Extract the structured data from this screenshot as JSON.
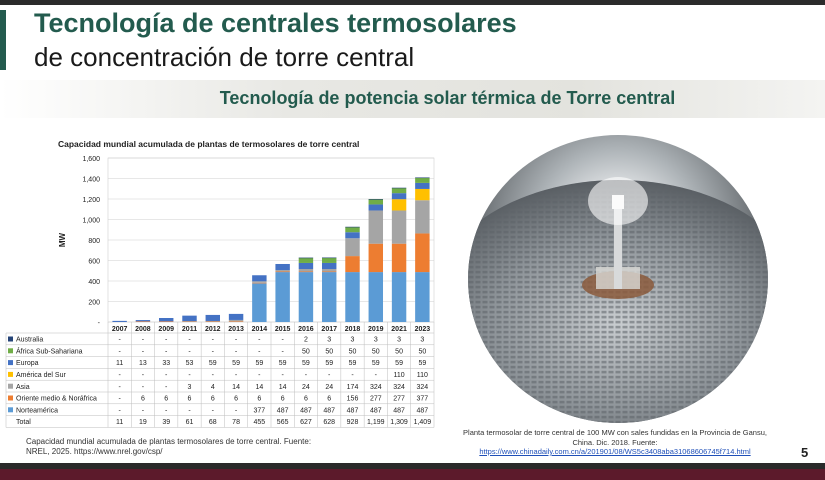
{
  "header": {
    "title_line1": "Tecnología de centrales termosolares",
    "title_line2": "de concentración de torre central",
    "subtitle": "Tecnología de potencia solar térmica de Torre central"
  },
  "chart_data": {
    "type": "bar",
    "stacked": true,
    "title": "Capacidad mundial acumulada de plantas de termosolares de torre central",
    "ylabel": "MW",
    "ylim": [
      0,
      1600
    ],
    "yticks": [
      "1,600",
      "1,400",
      "1,200",
      "1,000",
      "800",
      "600",
      "400",
      "200",
      "-"
    ],
    "grid": true,
    "categories": [
      "2007",
      "2008",
      "2009",
      "2011",
      "2012",
      "2013",
      "2014",
      "2015",
      "2016",
      "2017",
      "2018",
      "2019",
      "2021",
      "2023"
    ],
    "series": [
      {
        "name": "Norteamérica",
        "color": "#5b9bd5",
        "values": [
          0,
          0,
          0,
          0,
          0,
          0,
          377,
          487,
          487,
          487,
          487,
          487,
          487,
          487
        ],
        "labels": [
          "-",
          "-",
          "-",
          "-",
          "-",
          "-",
          "377",
          "487",
          "487",
          "487",
          "487",
          "487",
          "487",
          "487"
        ]
      },
      {
        "name": "Oriente medio & Noráfrica",
        "color": "#ed7d31",
        "values": [
          0,
          6,
          6,
          6,
          6,
          6,
          6,
          6,
          6,
          6,
          156,
          277,
          277,
          377
        ],
        "labels": [
          "-",
          "6",
          "6",
          "6",
          "6",
          "6",
          "6",
          "6",
          "6",
          "6",
          "156",
          "277",
          "277",
          "377"
        ]
      },
      {
        "name": "Asia",
        "color": "#a5a5a5",
        "values": [
          0,
          0,
          0,
          3,
          4,
          14,
          14,
          14,
          24,
          24,
          174,
          324,
          324,
          324
        ],
        "labels": [
          "-",
          "-",
          "-",
          "3",
          "4",
          "14",
          "14",
          "14",
          "24",
          "24",
          "174",
          "324",
          "324",
          "324"
        ]
      },
      {
        "name": "América del Sur",
        "color": "#ffc000",
        "values": [
          0,
          0,
          0,
          0,
          0,
          0,
          0,
          0,
          0,
          0,
          0,
          0,
          110,
          110
        ],
        "labels": [
          "-",
          "-",
          "-",
          "-",
          "-",
          "-",
          "-",
          "-",
          "-",
          "-",
          "-",
          "-",
          "110",
          "110"
        ]
      },
      {
        "name": "Europa",
        "color": "#4472c4",
        "values": [
          11,
          13,
          33,
          53,
          59,
          59,
          59,
          59,
          59,
          59,
          59,
          59,
          59,
          59
        ],
        "labels": [
          "11",
          "13",
          "33",
          "53",
          "59",
          "59",
          "59",
          "59",
          "59",
          "59",
          "59",
          "59",
          "59",
          "59"
        ]
      },
      {
        "name": "África Sub-Sahariana",
        "color": "#70ad47",
        "values": [
          0,
          0,
          0,
          0,
          0,
          0,
          0,
          0,
          50,
          50,
          50,
          50,
          50,
          50
        ],
        "labels": [
          "-",
          "-",
          "-",
          "-",
          "-",
          "-",
          "-",
          "-",
          "50",
          "50",
          "50",
          "50",
          "50",
          "50"
        ]
      },
      {
        "name": "Australia",
        "color": "#264478",
        "values": [
          0,
          0,
          0,
          0,
          0,
          0,
          0,
          0,
          2,
          3,
          3,
          3,
          3,
          3
        ],
        "labels": [
          "-",
          "-",
          "-",
          "-",
          "-",
          "-",
          "-",
          "-",
          "2",
          "3",
          "3",
          "3",
          "3",
          "3"
        ]
      }
    ],
    "table_rows_order": [
      "Australia",
      "África Sub-Sahariana",
      "Europa",
      "América del Sur",
      "Asia",
      "Oriente medio & Noráfrica",
      "Norteamérica"
    ],
    "total": {
      "name": "Total",
      "labels": [
        "11",
        "19",
        "39",
        "61",
        "68",
        "78",
        "455",
        "565",
        "627",
        "628",
        "928",
        "1,199",
        "1,309",
        "1,409"
      ]
    }
  },
  "captions": {
    "left": "Capacidad mundial acumulada de plantas termosolares de torre central. Fuente: NREL, 2025. https://www.nrel.gov/csp/",
    "right_text": "Planta termosolar de torre central de 100 MW con sales fundidas en la Provincia de Gansu, China. Dic. 2018. Fuente:",
    "right_link": "https://www.chinadaily.com.cn/a/201901/08/WS5c3408aba31068606745f714.html"
  },
  "page_number": "5"
}
